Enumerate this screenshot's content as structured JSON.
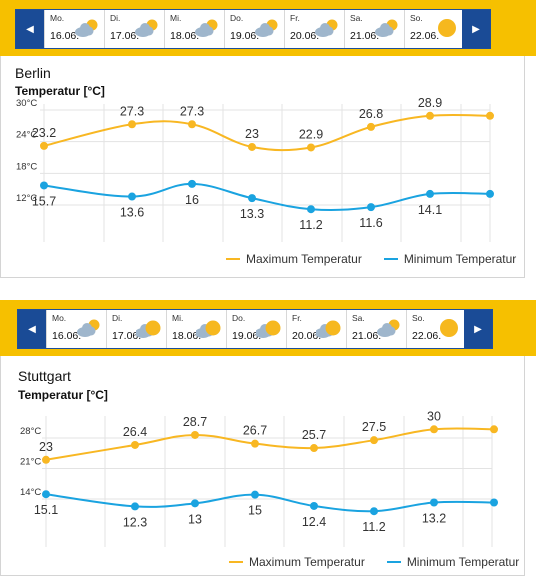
{
  "colors": {
    "bar": "#f6c000",
    "nav": "#1a4b96",
    "max_line": "#f8b722",
    "min_line": "#1aa3e0",
    "grid": "#e3e3e3",
    "sun": "#f6b81e",
    "cloud": "#8aa7c2"
  },
  "widgets": [
    {
      "city": "Berlin",
      "y_label": "Temperatur [°C]",
      "days": [
        {
          "weekday": "Mo.",
          "date": "16.06.",
          "icon": "cloud-sun-icon"
        },
        {
          "weekday": "Di.",
          "date": "17.06.",
          "icon": "cloud-sun-icon"
        },
        {
          "weekday": "Mi.",
          "date": "18.06.",
          "icon": "cloud-sun-icon"
        },
        {
          "weekday": "Do.",
          "date": "19.06.",
          "icon": "cloud-sun-icon"
        },
        {
          "weekday": "Fr.",
          "date": "20.06.",
          "icon": "cloud-sun-icon"
        },
        {
          "weekday": "Sa.",
          "date": "21.06.",
          "icon": "cloud-sun-icon"
        },
        {
          "weekday": "So.",
          "date": "22.06.",
          "icon": "sun-icon"
        }
      ],
      "legend": [
        "Maximum Temperatur",
        "Minimum Temperatur"
      ]
    },
    {
      "city": "Stuttgart",
      "y_label": "Temperatur [°C]",
      "days": [
        {
          "weekday": "Mo.",
          "date": "16.06.",
          "icon": "cloud-sun-icon"
        },
        {
          "weekday": "Di.",
          "date": "17.06.",
          "icon": "sun-cloud-icon"
        },
        {
          "weekday": "Mi.",
          "date": "18.06.",
          "icon": "sun-cloud-icon"
        },
        {
          "weekday": "Do.",
          "date": "19.06.",
          "icon": "sun-cloud-icon"
        },
        {
          "weekday": "Fr.",
          "date": "20.06.",
          "icon": "sun-cloud-icon"
        },
        {
          "weekday": "Sa.",
          "date": "21.06.",
          "icon": "cloud-sun-icon"
        },
        {
          "weekday": "So.",
          "date": "22.06.",
          "icon": "sun-icon"
        }
      ],
      "legend": [
        "Maximum Temperatur",
        "Minimum Temperatur"
      ]
    }
  ],
  "chart_data": [
    {
      "type": "line",
      "title": "Berlin",
      "ylabel": "Temperatur [°C]",
      "yticks": [
        "30°C",
        "24°C",
        "18°C",
        "12°C"
      ],
      "ytick_values": [
        30,
        24,
        18,
        12
      ],
      "grid": true,
      "legend_position": "bottom-right",
      "series": [
        {
          "name": "Maximum Temperatur",
          "values": [
            23.2,
            27.3,
            27.3,
            23,
            22.9,
            26.8,
            28.9,
            28.9
          ],
          "labels": [
            "23.2",
            "27.3",
            "27.3",
            "23",
            "22.9",
            "26.8",
            "28.9",
            ""
          ]
        },
        {
          "name": "Minimum Temperatur",
          "values": [
            15.7,
            13.6,
            16,
            13.3,
            11.2,
            11.6,
            14.1,
            14.1
          ],
          "labels": [
            "15.7",
            "13.6",
            "16",
            "13.3",
            "11.2",
            "11.6",
            "14.1",
            ""
          ]
        }
      ]
    },
    {
      "type": "line",
      "title": "Stuttgart",
      "ylabel": "Temperatur [°C]",
      "yticks": [
        "28°C",
        "21°C",
        "14°C"
      ],
      "ytick_values": [
        28,
        21,
        14
      ],
      "grid": true,
      "legend_position": "bottom-right",
      "series": [
        {
          "name": "Maximum Temperatur",
          "values": [
            23,
            26.4,
            28.7,
            26.7,
            25.7,
            27.5,
            30,
            30
          ],
          "labels": [
            "23",
            "26.4",
            "28.7",
            "26.7",
            "25.7",
            "27.5",
            "30",
            ""
          ]
        },
        {
          "name": "Minimum Temperatur",
          "values": [
            15.1,
            12.3,
            13,
            15,
            12.4,
            11.2,
            13.2,
            13.2
          ],
          "labels": [
            "15.1",
            "12.3",
            "13",
            "15",
            "12.4",
            "11.2",
            "13.2",
            ""
          ]
        }
      ]
    }
  ]
}
